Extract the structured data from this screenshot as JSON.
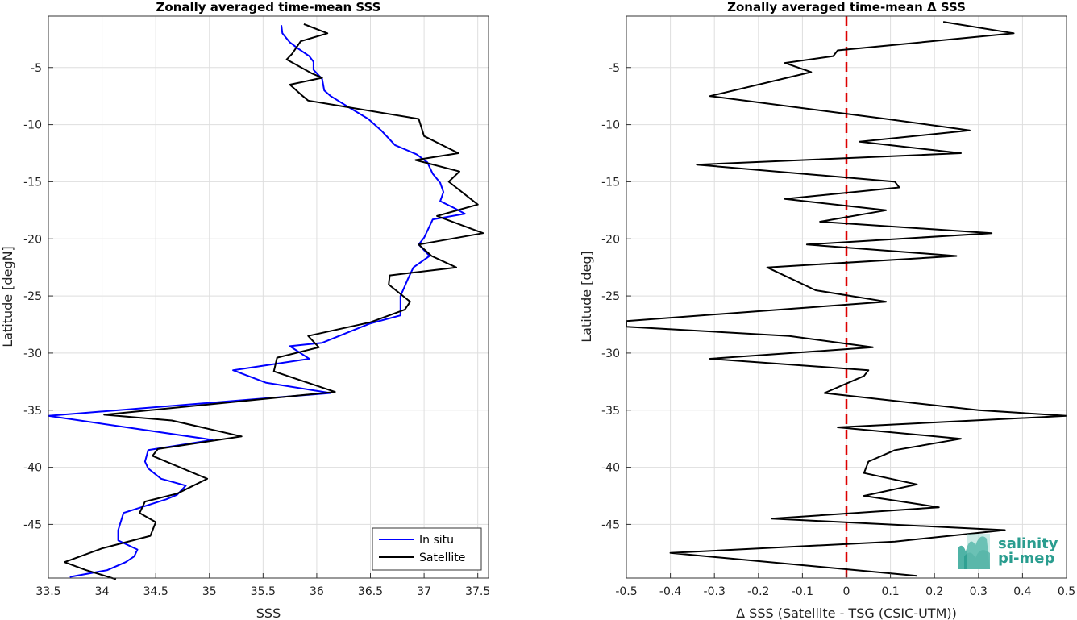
{
  "chart_data": [
    {
      "type": "line",
      "title": "Zonally averaged time-mean SSS",
      "xlabel": "SSS",
      "ylabel": "Latitude [degN]",
      "xlim": [
        33.5,
        37.6
      ],
      "ylim": [
        -49.7,
        -0.5
      ],
      "xticks": [
        "33.5",
        "34",
        "34.5",
        "35",
        "35.5",
        "36",
        "36.5",
        "37",
        "37.5"
      ],
      "yticks": [
        "-5",
        "-10",
        "-15",
        "-20",
        "-25",
        "-30",
        "-35",
        "-40",
        "-45"
      ],
      "grid": true,
      "legend_position": "bottom-right",
      "series": [
        {
          "name": "In situ",
          "color": "#0000ff",
          "x": [
            35.67,
            35.68,
            35.75,
            35.82,
            35.93,
            35.97,
            35.97,
            36.05,
            36.07,
            36.13,
            36.25,
            36.48,
            36.6,
            36.73,
            36.93,
            37.03,
            37.08,
            37.15,
            37.18,
            37.15,
            37.28,
            37.38,
            37.08,
            37.05,
            37.0,
            36.95,
            37.05,
            36.9,
            36.85,
            36.78,
            36.78,
            36.5,
            36.05,
            35.75,
            35.93,
            35.22,
            35.53,
            36.13,
            33.5,
            35.03,
            34.43,
            34.4,
            34.43,
            34.55,
            34.78,
            34.7,
            34.6,
            34.2,
            34.15,
            34.15,
            34.33,
            34.3,
            34.22,
            34.05,
            33.7
          ],
          "y": [
            -1.3,
            -2.0,
            -2.8,
            -3.3,
            -4.0,
            -4.5,
            -5.2,
            -6.0,
            -7.0,
            -7.5,
            -8.2,
            -9.5,
            -10.5,
            -11.8,
            -12.6,
            -13.3,
            -14.3,
            -15.1,
            -15.9,
            -16.7,
            -17.3,
            -17.8,
            -18.3,
            -18.9,
            -19.9,
            -20.5,
            -21.5,
            -22.5,
            -23.5,
            -25.0,
            -26.7,
            -27.4,
            -29.1,
            -29.4,
            -30.5,
            -31.5,
            -32.6,
            -33.5,
            -35.5,
            -37.6,
            -38.5,
            -39.5,
            -40.1,
            -41.0,
            -41.6,
            -42.4,
            -42.8,
            -44.0,
            -45.5,
            -46.4,
            -47.2,
            -47.8,
            -48.3,
            -49.0,
            -49.6
          ]
        },
        {
          "name": "Satellite",
          "color": "#000000",
          "x": [
            35.88,
            36.1,
            35.85,
            35.77,
            35.72,
            35.95,
            36.05,
            35.75,
            35.87,
            35.92,
            36.95,
            37.0,
            37.32,
            36.92,
            37.33,
            37.23,
            37.5,
            37.12,
            37.55,
            36.95,
            37.07,
            37.3,
            36.68,
            36.67,
            36.87,
            36.82,
            36.5,
            35.92,
            36.02,
            35.63,
            35.6,
            36.17,
            34.02,
            34.65,
            35.3,
            34.52,
            34.47,
            34.98,
            34.7,
            34.4,
            34.35,
            34.5,
            34.45,
            34.0,
            33.65,
            33.85,
            34.13
          ],
          "y": [
            -1.2,
            -2.0,
            -2.7,
            -3.8,
            -4.3,
            -5.5,
            -5.9,
            -6.5,
            -7.5,
            -7.9,
            -9.5,
            -11.0,
            -12.5,
            -13.1,
            -14.1,
            -15.0,
            -17.0,
            -18.0,
            -19.5,
            -20.5,
            -21.5,
            -22.5,
            -23.2,
            -24.0,
            -25.5,
            -26.2,
            -27.3,
            -28.5,
            -29.5,
            -30.4,
            -31.6,
            -33.4,
            -35.4,
            -35.9,
            -37.3,
            -38.4,
            -39.0,
            -41.0,
            -42.3,
            -43.0,
            -44.0,
            -44.8,
            -46.0,
            -47.1,
            -48.3,
            -49.0,
            -49.8
          ]
        }
      ]
    },
    {
      "type": "line",
      "title": "Zonally averaged time-mean Δ SSS",
      "xlabel": "Δ SSS (Satellite - TSG (CSIC-UTM))",
      "ylabel": "Latitude [deg]",
      "xlim": [
        -0.5,
        0.5
      ],
      "ylim": [
        -49.7,
        -0.5
      ],
      "xticks": [
        "-0.5",
        "-0.4",
        "-0.3",
        "-0.2",
        "-0.1",
        "0",
        "0.1",
        "0.2",
        "0.3",
        "0.4",
        "0.5"
      ],
      "yticks": [
        "-5",
        "-10",
        "-15",
        "-20",
        "-25",
        "-30",
        "-35",
        "-40",
        "-45"
      ],
      "grid": true,
      "reference_line": {
        "x": 0,
        "color": "#dd0000",
        "style": "dashed"
      },
      "series": [
        {
          "color": "#000000",
          "x": [
            0.22,
            0.38,
            -0.02,
            -0.03,
            -0.14,
            -0.08,
            -0.31,
            0.09,
            0.28,
            0.03,
            0.26,
            -0.34,
            0.11,
            0.12,
            -0.14,
            0.09,
            -0.06,
            0.33,
            -0.09,
            0.25,
            -0.18,
            -0.07,
            0.09,
            -0.5,
            -0.5,
            -0.13,
            0.06,
            -0.31,
            0.05,
            0.04,
            -0.05,
            0.3,
            0.5,
            -0.02,
            0.26,
            0.11,
            0.05,
            0.04,
            0.16,
            0.04,
            0.21,
            -0.17,
            0.36,
            0.11,
            -0.4,
            0.16
          ],
          "y": [
            -1.0,
            -2.0,
            -3.5,
            -4.0,
            -4.6,
            -5.4,
            -7.5,
            -9.5,
            -10.5,
            -11.5,
            -12.5,
            -13.5,
            -15.0,
            -15.5,
            -16.5,
            -17.5,
            -18.5,
            -19.5,
            -20.5,
            -21.5,
            -22.5,
            -24.5,
            -25.5,
            -27.2,
            -27.7,
            -28.5,
            -29.5,
            -30.5,
            -31.5,
            -32.0,
            -33.5,
            -35.0,
            -35.5,
            -36.5,
            -37.5,
            -38.5,
            -39.5,
            -40.5,
            -41.5,
            -42.5,
            -43.5,
            -44.5,
            -45.5,
            -46.5,
            -47.5,
            -49.5
          ]
        }
      ]
    }
  ],
  "logo": {
    "line1": "salinity",
    "line2": "pi-mep",
    "color": "#2a9d8f"
  }
}
